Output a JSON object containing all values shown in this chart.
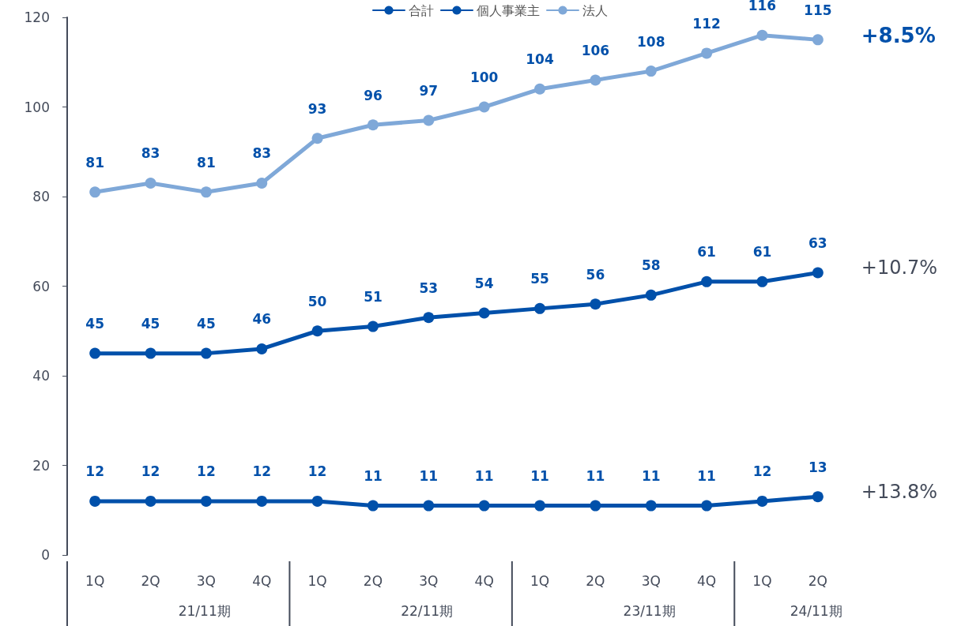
{
  "chart_data": {
    "type": "line",
    "categories": [
      "1Q",
      "2Q",
      "3Q",
      "4Q",
      "1Q",
      "2Q",
      "3Q",
      "4Q",
      "1Q",
      "2Q",
      "3Q",
      "4Q",
      "1Q",
      "2Q"
    ],
    "series": [
      {
        "name": "合計",
        "color": "#0050aa",
        "values": [
          45,
          45,
          45,
          46,
          50,
          51,
          53,
          54,
          55,
          56,
          58,
          61,
          61,
          63
        ]
      },
      {
        "name": "個人事業主",
        "color": "#0050aa",
        "values": [
          12,
          12,
          12,
          12,
          12,
          11,
          11,
          11,
          11,
          11,
          11,
          11,
          12,
          13
        ]
      },
      {
        "name": "法人",
        "color": "#7fa8d8",
        "values": [
          81,
          83,
          81,
          83,
          93,
          96,
          97,
          100,
          104,
          106,
          108,
          112,
          116,
          115
        ]
      }
    ],
    "ylim": [
      0,
      120
    ],
    "yticks": [
      0,
      20,
      40,
      60,
      80,
      100,
      120
    ],
    "grid": false,
    "legend": "top",
    "marker": "circle",
    "line_style": "solid",
    "data_labels": true,
    "annotations": [
      "+10.7%",
      "+13.8%",
      "+8.5%",
      "21/11期",
      "22/11期",
      "23/11期",
      "24/11期"
    ]
  }
}
